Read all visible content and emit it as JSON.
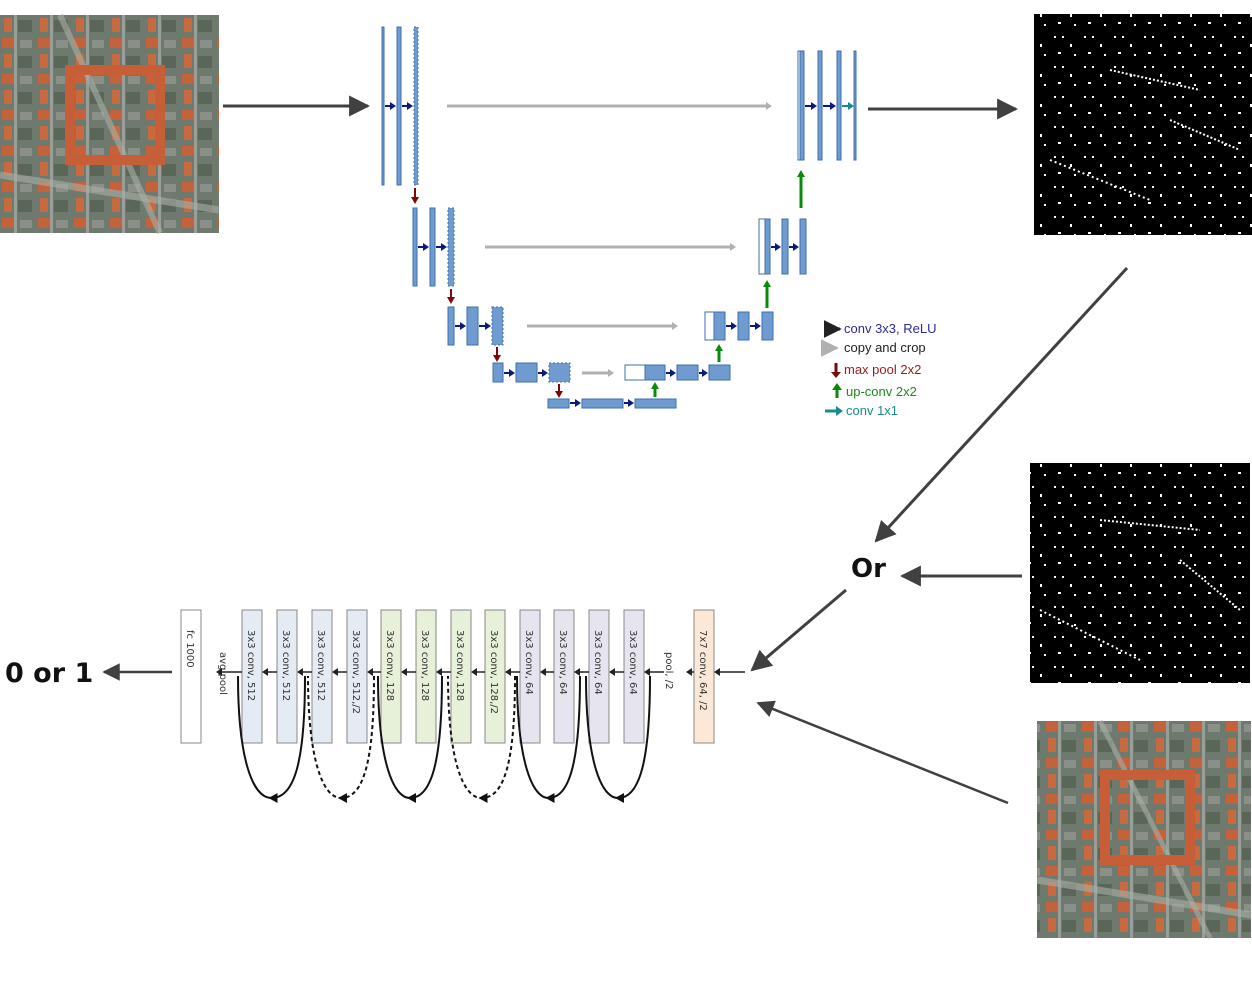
{
  "legend": {
    "conv": "conv 3x3, ReLU",
    "copy": "copy and crop",
    "pool": "max pool 2x2",
    "upconv": "up-conv 2x2",
    "conv1x1": "conv 1x1"
  },
  "or_label": "Or",
  "output_label": "0 or 1",
  "resnet_layers": [
    {
      "label": "7x7 conv, 64, /2",
      "color": "#fde8d8"
    },
    {
      "label": "pool, /2",
      "color": ""
    },
    {
      "label": "3x3 conv, 64",
      "color": "#e6e4ee"
    },
    {
      "label": "3x3 conv, 64",
      "color": "#e6e4ee"
    },
    {
      "label": "3x3 conv, 64",
      "color": "#e6e4ee"
    },
    {
      "label": "3x3 conv, 64",
      "color": "#e6e4ee"
    },
    {
      "label": "3x3 conv, 128,/2",
      "color": "#e7f0d9"
    },
    {
      "label": "3x3 conv, 128",
      "color": "#e7f0d9"
    },
    {
      "label": "3x3 conv, 128",
      "color": "#e7f0d9"
    },
    {
      "label": "3x3 conv, 128",
      "color": "#e7f0d9"
    },
    {
      "label": "3x3 conv, 512,/2",
      "color": "#e4ebf3"
    },
    {
      "label": "3x3 conv, 512",
      "color": "#e4ebf3"
    },
    {
      "label": "3x3 conv, 512",
      "color": "#e4ebf3"
    },
    {
      "label": "3x3 conv, 512",
      "color": "#e4ebf3"
    },
    {
      "label": "avg pool",
      "color": ""
    },
    {
      "label": "fc 1000",
      "color": "#ffffff"
    }
  ],
  "colors": {
    "unet_block": "#6f9bd1",
    "unet_block_border": "#3f6fae",
    "conv_arrow": "#0a1a7a",
    "copy_arrow": "#b0b0b0",
    "pool_arrow": "#7a0a0a",
    "upconv_arrow": "#0a8a0a",
    "conv1x1_arrow": "#1a8a8a",
    "legend_conv": "#2a2a9a",
    "legend_pool": "#9a1a1a",
    "legend_upconv": "#1a8a1a",
    "legend_conv1x1": "#1a8a8a"
  }
}
